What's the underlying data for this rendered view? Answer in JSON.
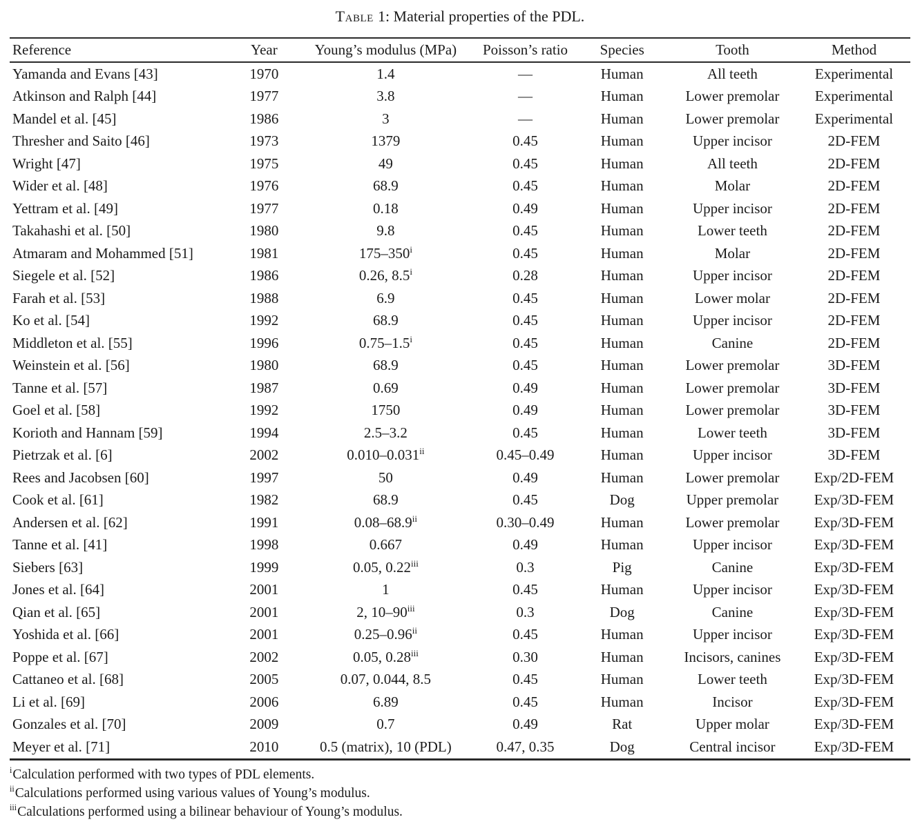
{
  "title": {
    "word": "Table",
    "rest": "1: Material properties of the PDL."
  },
  "table": {
    "columns": [
      {
        "key": "ref",
        "label": "Reference"
      },
      {
        "key": "year",
        "label": "Year"
      },
      {
        "key": "ym",
        "label": "Young’s modulus (MPa)"
      },
      {
        "key": "pr",
        "label": "Poisson’s ratio"
      },
      {
        "key": "species",
        "label": "Species"
      },
      {
        "key": "tooth",
        "label": "Tooth"
      },
      {
        "key": "method",
        "label": "Method"
      }
    ],
    "rows": [
      {
        "ref": "Yamanda and Evans [43]",
        "year": "1970",
        "ym": "1.4",
        "ym_sup": "",
        "pr": "—",
        "species": "Human",
        "tooth": "All teeth",
        "method": "Experimental"
      },
      {
        "ref": "Atkinson and Ralph [44]",
        "year": "1977",
        "ym": "3.8",
        "ym_sup": "",
        "pr": "—",
        "species": "Human",
        "tooth": "Lower premolar",
        "method": "Experimental"
      },
      {
        "ref": "Mandel et al. [45]",
        "year": "1986",
        "ym": "3",
        "ym_sup": "",
        "pr": "—",
        "species": "Human",
        "tooth": "Lower premolar",
        "method": "Experimental"
      },
      {
        "ref": "Thresher and Saito [46]",
        "year": "1973",
        "ym": "1379",
        "ym_sup": "",
        "pr": "0.45",
        "species": "Human",
        "tooth": "Upper incisor",
        "method": "2D-FEM"
      },
      {
        "ref": "Wright [47]",
        "year": "1975",
        "ym": "49",
        "ym_sup": "",
        "pr": "0.45",
        "species": "Human",
        "tooth": "All teeth",
        "method": "2D-FEM"
      },
      {
        "ref": "Wider et al. [48]",
        "year": "1976",
        "ym": "68.9",
        "ym_sup": "",
        "pr": "0.45",
        "species": "Human",
        "tooth": "Molar",
        "method": "2D-FEM"
      },
      {
        "ref": "Yettram et al. [49]",
        "year": "1977",
        "ym": "0.18",
        "ym_sup": "",
        "pr": "0.49",
        "species": "Human",
        "tooth": "Upper incisor",
        "method": "2D-FEM"
      },
      {
        "ref": "Takahashi et al. [50]",
        "year": "1980",
        "ym": "9.8",
        "ym_sup": "",
        "pr": "0.45",
        "species": "Human",
        "tooth": "Lower teeth",
        "method": "2D-FEM"
      },
      {
        "ref": "Atmaram and Mohammed [51]",
        "year": "1981",
        "ym": "175–350",
        "ym_sup": "i",
        "pr": "0.45",
        "species": "Human",
        "tooth": "Molar",
        "method": "2D-FEM"
      },
      {
        "ref": "Siegele et al. [52]",
        "year": "1986",
        "ym": "0.26, 8.5",
        "ym_sup": "i",
        "pr": "0.28",
        "species": "Human",
        "tooth": "Upper incisor",
        "method": "2D-FEM"
      },
      {
        "ref": "Farah et al. [53]",
        "year": "1988",
        "ym": "6.9",
        "ym_sup": "",
        "pr": "0.45",
        "species": "Human",
        "tooth": "Lower molar",
        "method": "2D-FEM"
      },
      {
        "ref": "Ko et al. [54]",
        "year": "1992",
        "ym": "68.9",
        "ym_sup": "",
        "pr": "0.45",
        "species": "Human",
        "tooth": "Upper incisor",
        "method": "2D-FEM"
      },
      {
        "ref": "Middleton et al. [55]",
        "year": "1996",
        "ym": "0.75–1.5",
        "ym_sup": "i",
        "pr": "0.45",
        "species": "Human",
        "tooth": "Canine",
        "method": "2D-FEM"
      },
      {
        "ref": "Weinstein et al. [56]",
        "year": "1980",
        "ym": "68.9",
        "ym_sup": "",
        "pr": "0.45",
        "species": "Human",
        "tooth": "Lower premolar",
        "method": "3D-FEM"
      },
      {
        "ref": "Tanne et al. [57]",
        "year": "1987",
        "ym": "0.69",
        "ym_sup": "",
        "pr": "0.49",
        "species": "Human",
        "tooth": "Lower premolar",
        "method": "3D-FEM"
      },
      {
        "ref": "Goel et al. [58]",
        "year": "1992",
        "ym": "1750",
        "ym_sup": "",
        "pr": "0.49",
        "species": "Human",
        "tooth": "Lower premolar",
        "method": "3D-FEM"
      },
      {
        "ref": "Korioth and Hannam [59]",
        "year": "1994",
        "ym": "2.5–3.2",
        "ym_sup": "",
        "pr": "0.45",
        "species": "Human",
        "tooth": "Lower teeth",
        "method": "3D-FEM"
      },
      {
        "ref": "Pietrzak et al. [6]",
        "year": "2002",
        "ym": "0.010–0.031",
        "ym_sup": "ii",
        "pr": "0.45–0.49",
        "species": "Human",
        "tooth": "Upper incisor",
        "method": "3D-FEM"
      },
      {
        "ref": "Rees and Jacobsen [60]",
        "year": "1997",
        "ym": "50",
        "ym_sup": "",
        "pr": "0.49",
        "species": "Human",
        "tooth": "Lower premolar",
        "method": "Exp/2D-FEM"
      },
      {
        "ref": "Cook et al. [61]",
        "year": "1982",
        "ym": "68.9",
        "ym_sup": "",
        "pr": "0.45",
        "species": "Dog",
        "tooth": "Upper premolar",
        "method": "Exp/3D-FEM"
      },
      {
        "ref": "Andersen et al. [62]",
        "year": "1991",
        "ym": "0.08–68.9",
        "ym_sup": "ii",
        "pr": "0.30–0.49",
        "species": "Human",
        "tooth": "Lower premolar",
        "method": "Exp/3D-FEM"
      },
      {
        "ref": "Tanne et al. [41]",
        "year": "1998",
        "ym": "0.667",
        "ym_sup": "",
        "pr": "0.49",
        "species": "Human",
        "tooth": "Upper incisor",
        "method": "Exp/3D-FEM"
      },
      {
        "ref": "Siebers [63]",
        "year": "1999",
        "ym": "0.05, 0.22",
        "ym_sup": "iii",
        "pr": "0.3",
        "species": "Pig",
        "tooth": "Canine",
        "method": "Exp/3D-FEM"
      },
      {
        "ref": "Jones et al. [64]",
        "year": "2001",
        "ym": "1",
        "ym_sup": "",
        "pr": "0.45",
        "species": "Human",
        "tooth": "Upper incisor",
        "method": "Exp/3D-FEM"
      },
      {
        "ref": "Qian et al. [65]",
        "year": "2001",
        "ym": "2, 10–90",
        "ym_sup": "iii",
        "pr": "0.3",
        "species": "Dog",
        "tooth": "Canine",
        "method": "Exp/3D-FEM"
      },
      {
        "ref": "Yoshida et al. [66]",
        "year": "2001",
        "ym": "0.25–0.96",
        "ym_sup": "ii",
        "pr": "0.45",
        "species": "Human",
        "tooth": "Upper incisor",
        "method": "Exp/3D-FEM"
      },
      {
        "ref": "Poppe et al. [67]",
        "year": "2002",
        "ym": "0.05, 0.28",
        "ym_sup": "iii",
        "pr": "0.30",
        "species": "Human",
        "tooth": "Incisors, canines",
        "method": "Exp/3D-FEM"
      },
      {
        "ref": "Cattaneo et al. [68]",
        "year": "2005",
        "ym": "0.07, 0.044, 8.5",
        "ym_sup": "",
        "pr": "0.45",
        "species": "Human",
        "tooth": "Lower teeth",
        "method": "Exp/3D-FEM"
      },
      {
        "ref": "Li et al. [69]",
        "year": "2006",
        "ym": "6.89",
        "ym_sup": "",
        "pr": "0.45",
        "species": "Human",
        "tooth": "Incisor",
        "method": "Exp/3D-FEM"
      },
      {
        "ref": "Gonzales et al. [70]",
        "year": "2009",
        "ym": "0.7",
        "ym_sup": "",
        "pr": "0.49",
        "species": "Rat",
        "tooth": "Upper molar",
        "method": "Exp/3D-FEM"
      },
      {
        "ref": "Meyer et al. [71]",
        "year": "2010",
        "ym": "0.5 (matrix), 10 (PDL)",
        "ym_sup": "",
        "pr": "0.47, 0.35",
        "species": "Dog",
        "tooth": "Central incisor",
        "method": "Exp/3D-FEM"
      }
    ]
  },
  "footnotes": [
    {
      "marker": "i",
      "text": "Calculation performed with two types of PDL elements."
    },
    {
      "marker": "ii",
      "text": "Calculations performed using various values of Young’s modulus."
    },
    {
      "marker": "iii",
      "text": "Calculations performed using a bilinear behaviour of Young’s modulus."
    }
  ]
}
